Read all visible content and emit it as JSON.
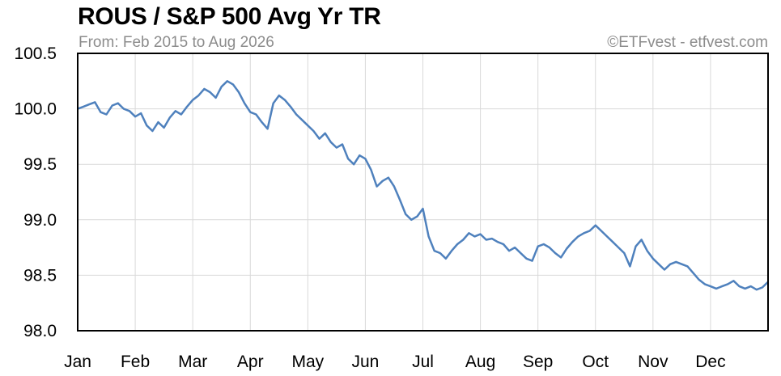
{
  "title": "ROUS / S&P 500 Avg Yr TR",
  "subtitle": "From: Feb 2015 to Aug 2026",
  "credit": "©ETFvest - etfvest.com",
  "colors": {
    "line": "#4f81bd",
    "grid": "#d9d9d9",
    "axis": "#000000",
    "background": "#ffffff"
  },
  "chart_data": {
    "type": "line",
    "title": "ROUS / S&P 500 Avg Yr TR",
    "subtitle": "From: Feb 2015 to Aug 2026",
    "xlabel": "",
    "ylabel": "",
    "x_tick_labels": [
      "Jan",
      "Feb",
      "Mar",
      "Apr",
      "May",
      "Jun",
      "Jul",
      "Aug",
      "Sep",
      "Oct",
      "Nov",
      "Dec"
    ],
    "y_tick_labels": [
      "100.5",
      "100.0",
      "99.5",
      "99.0",
      "98.5",
      "98.0"
    ],
    "y_ticks": [
      100.5,
      100.0,
      99.5,
      99.0,
      98.5,
      98.0
    ],
    "ylim": [
      98.0,
      100.5
    ],
    "xlim": [
      0,
      12
    ],
    "grid": true,
    "legend": "none",
    "series": [
      {
        "x": [
          0.0,
          0.1,
          0.2,
          0.3,
          0.4,
          0.5,
          0.6,
          0.7,
          0.8,
          0.9,
          1.0,
          1.1,
          1.2,
          1.3,
          1.4,
          1.5,
          1.6,
          1.7,
          1.8,
          1.9,
          2.0,
          2.1,
          2.2,
          2.3,
          2.4,
          2.5,
          2.6,
          2.7,
          2.8,
          2.9,
          3.0,
          3.1,
          3.2,
          3.3,
          3.4,
          3.5,
          3.6,
          3.7,
          3.8,
          3.9,
          4.0,
          4.1,
          4.2,
          4.3,
          4.4,
          4.5,
          4.6,
          4.7,
          4.8,
          4.9,
          5.0,
          5.1,
          5.2,
          5.3,
          5.4,
          5.5,
          5.6,
          5.7,
          5.8,
          5.9,
          6.0,
          6.1,
          6.2,
          6.3,
          6.4,
          6.5,
          6.6,
          6.7,
          6.8,
          6.9,
          7.0,
          7.1,
          7.2,
          7.3,
          7.4,
          7.5,
          7.6,
          7.7,
          7.8,
          7.9,
          8.0,
          8.1,
          8.2,
          8.3,
          8.4,
          8.5,
          8.6,
          8.7,
          8.8,
          8.9,
          9.0,
          9.1,
          9.2,
          9.3,
          9.4,
          9.5,
          9.6,
          9.7,
          9.8,
          9.9,
          10.0,
          10.1,
          10.2,
          10.3,
          10.4,
          10.5,
          10.6,
          10.7,
          10.8,
          10.9,
          11.0,
          11.1,
          11.2,
          11.3,
          11.4,
          11.5,
          11.6,
          11.7,
          11.8,
          11.9,
          12.0
        ],
        "values": [
          100.0,
          100.02,
          100.04,
          100.06,
          99.97,
          99.95,
          100.03,
          100.05,
          100.0,
          99.98,
          99.93,
          99.96,
          99.85,
          99.8,
          99.88,
          99.83,
          99.92,
          99.98,
          99.95,
          100.02,
          100.08,
          100.12,
          100.18,
          100.15,
          100.1,
          100.2,
          100.25,
          100.22,
          100.15,
          100.05,
          99.97,
          99.95,
          99.88,
          99.82,
          100.05,
          100.12,
          100.08,
          100.02,
          99.95,
          99.9,
          99.85,
          99.8,
          99.73,
          99.78,
          99.7,
          99.65,
          99.68,
          99.55,
          99.5,
          99.58,
          99.55,
          99.45,
          99.3,
          99.35,
          99.38,
          99.3,
          99.18,
          99.05,
          99.0,
          99.03,
          99.1,
          98.85,
          98.72,
          98.7,
          98.65,
          98.72,
          98.78,
          98.82,
          98.88,
          98.85,
          98.87,
          98.82,
          98.83,
          98.8,
          98.78,
          98.72,
          98.75,
          98.7,
          98.65,
          98.63,
          98.76,
          98.78,
          98.75,
          98.7,
          98.66,
          98.74,
          98.8,
          98.85,
          98.88,
          98.9,
          98.95,
          98.9,
          98.85,
          98.8,
          98.75,
          98.7,
          98.58,
          98.76,
          98.82,
          98.72,
          98.65,
          98.6,
          98.55,
          98.6,
          98.62,
          98.6,
          98.58,
          98.52,
          98.46,
          98.42,
          98.4,
          98.38,
          98.4,
          98.42,
          98.45,
          98.4,
          98.38,
          98.4,
          98.37,
          98.39,
          98.44
        ]
      }
    ]
  }
}
